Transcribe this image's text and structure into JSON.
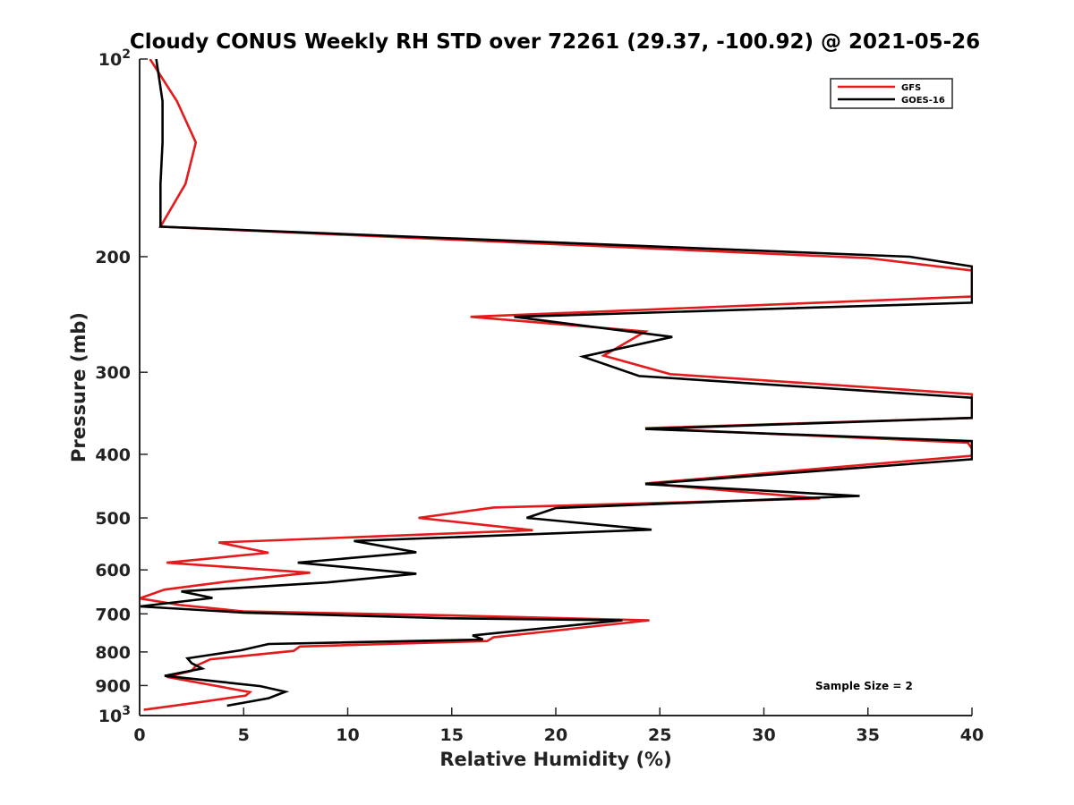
{
  "chart_data": {
    "type": "line",
    "title": "Cloudy CONUS Weekly RH STD over 72261 (29.37, -100.92) @ 2021-05-26",
    "xlabel": "Relative Humidity (%)",
    "ylabel": "Pressure (mb)",
    "xlim": [
      0,
      40
    ],
    "ylim": [
      100,
      1000
    ],
    "y_scale": "log",
    "y_reversed": true,
    "grid": false,
    "legend_position": "top-right",
    "annotation": "Sample Size = 2",
    "x_ticks": [
      {
        "value": 0,
        "label": "0"
      },
      {
        "value": 5,
        "label": "5"
      },
      {
        "value": 10,
        "label": "10"
      },
      {
        "value": 15,
        "label": "15"
      },
      {
        "value": 20,
        "label": "20"
      },
      {
        "value": 25,
        "label": "25"
      },
      {
        "value": 30,
        "label": "30"
      },
      {
        "value": 35,
        "label": "35"
      },
      {
        "value": 40,
        "label": "40"
      }
    ],
    "y_ticks": [
      {
        "value": 100,
        "base": "10",
        "exp": "2"
      },
      {
        "value": 200,
        "label": "200"
      },
      {
        "value": 300,
        "label": "300"
      },
      {
        "value": 400,
        "label": "400"
      },
      {
        "value": 500,
        "label": "500"
      },
      {
        "value": 600,
        "label": "600"
      },
      {
        "value": 700,
        "label": "700"
      },
      {
        "value": 800,
        "label": "800"
      },
      {
        "value": 900,
        "label": "900"
      },
      {
        "value": 1000,
        "base": "10",
        "exp": "3"
      }
    ],
    "series": [
      {
        "name": "GFS",
        "color": "#e41a1c",
        "points": [
          [
            0.5,
            100
          ],
          [
            1.8,
            116
          ],
          [
            2.7,
            134
          ],
          [
            2.2,
            155
          ],
          [
            1.0,
            180
          ],
          [
            35.0,
            201
          ],
          [
            40.0,
            210
          ],
          [
            40.0,
            230
          ],
          [
            15.9,
            247
          ],
          [
            24.3,
            260
          ],
          [
            22.3,
            283
          ],
          [
            25.5,
            302
          ],
          [
            40.0,
            324
          ],
          [
            40.0,
            352
          ],
          [
            24.3,
            365
          ],
          [
            39.8,
            384
          ],
          [
            40.0,
            392
          ],
          [
            40.0,
            402
          ],
          [
            24.3,
            443
          ],
          [
            32.7,
            467
          ],
          [
            17.0,
            482
          ],
          [
            13.4,
            500
          ],
          [
            18.9,
            522
          ],
          [
            3.8,
            545
          ],
          [
            6.2,
            565
          ],
          [
            1.3,
            585
          ],
          [
            8.2,
            606
          ],
          [
            4.2,
            625
          ],
          [
            1.2,
            643
          ],
          [
            0.0,
            663
          ],
          [
            2.0,
            679
          ],
          [
            5.0,
            694
          ],
          [
            15.0,
            704
          ],
          [
            24.5,
            716
          ],
          [
            17.0,
            760
          ],
          [
            16.7,
            770
          ],
          [
            7.7,
            785
          ],
          [
            7.4,
            797
          ],
          [
            3.4,
            821
          ],
          [
            2.7,
            840
          ],
          [
            2.5,
            855
          ],
          [
            1.3,
            873
          ],
          [
            5.3,
            921
          ],
          [
            5.1,
            932
          ],
          [
            3.0,
            953
          ],
          [
            0.2,
            980
          ]
        ]
      },
      {
        "name": "GOES-16",
        "color": "#000000",
        "points": [
          [
            0.8,
            100
          ],
          [
            1.1,
            116
          ],
          [
            1.1,
            134
          ],
          [
            1.0,
            155
          ],
          [
            1.0,
            180
          ],
          [
            37.0,
            200
          ],
          [
            40.0,
            207
          ],
          [
            40.0,
            235
          ],
          [
            18.0,
            247
          ],
          [
            25.6,
            265
          ],
          [
            21.3,
            284
          ],
          [
            24.0,
            304
          ],
          [
            40.0,
            328
          ],
          [
            40.0,
            352
          ],
          [
            24.3,
            366
          ],
          [
            40.0,
            382
          ],
          [
            40.0,
            407
          ],
          [
            24.3,
            444
          ],
          [
            34.6,
            463
          ],
          [
            20.0,
            483
          ],
          [
            18.6,
            500
          ],
          [
            24.6,
            521
          ],
          [
            10.3,
            542
          ],
          [
            13.3,
            564
          ],
          [
            7.6,
            585
          ],
          [
            13.3,
            608
          ],
          [
            9.0,
            627
          ],
          [
            2.0,
            647
          ],
          [
            3.5,
            662
          ],
          [
            0.0,
            682
          ],
          [
            5.0,
            697
          ],
          [
            15.0,
            711
          ],
          [
            23.2,
            716
          ],
          [
            16.0,
            755
          ],
          [
            16.5,
            766
          ],
          [
            6.2,
            778
          ],
          [
            4.9,
            795
          ],
          [
            2.3,
            818
          ],
          [
            2.5,
            832
          ],
          [
            3.0,
            848
          ],
          [
            1.2,
            870
          ],
          [
            5.8,
            902
          ],
          [
            7.0,
            920
          ],
          [
            6.2,
            941
          ],
          [
            4.2,
            966
          ]
        ]
      }
    ]
  }
}
